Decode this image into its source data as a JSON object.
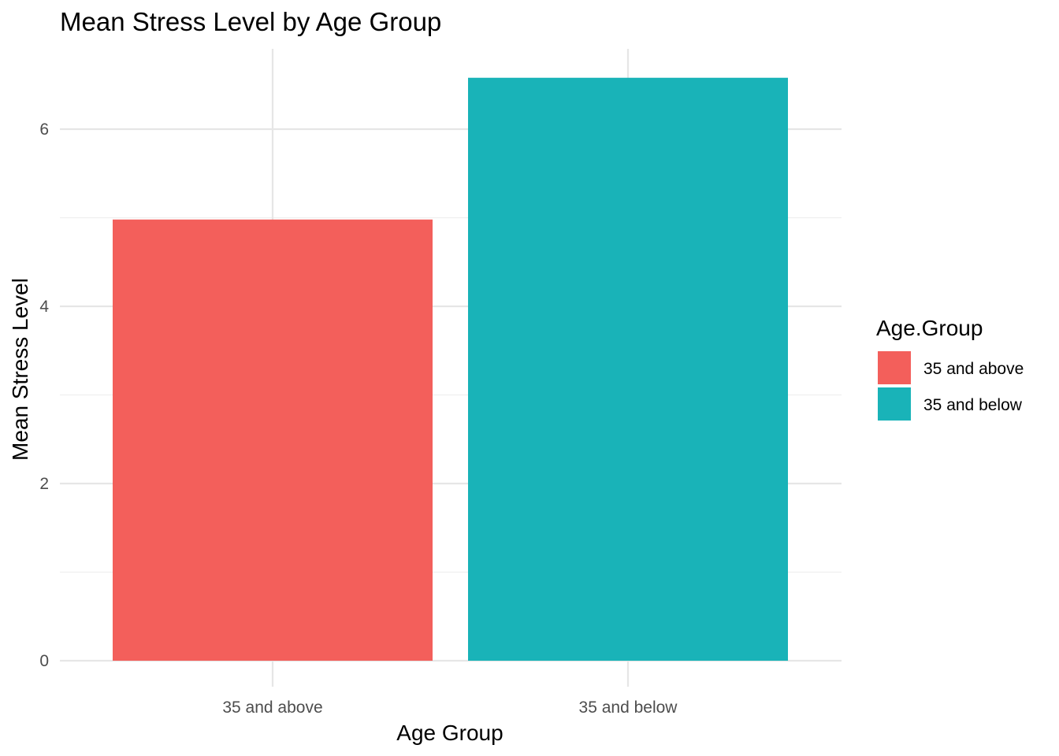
{
  "chart_data": {
    "type": "bar",
    "title": "Mean Stress Level by Age Group",
    "xlabel": "Age Group",
    "ylabel": "Mean Stress Level",
    "categories": [
      "35 and above",
      "35 and below"
    ],
    "values": [
      4.98,
      6.58
    ],
    "ylim": [
      0,
      6.75
    ],
    "yticks": [
      0,
      2,
      4,
      6
    ],
    "grid": true,
    "colors": [
      "#F35F5B",
      "#19B3B8"
    ],
    "legend": {
      "title": "Age.Group",
      "position": "right",
      "entries": [
        "35 and above",
        "35 and below"
      ]
    }
  }
}
